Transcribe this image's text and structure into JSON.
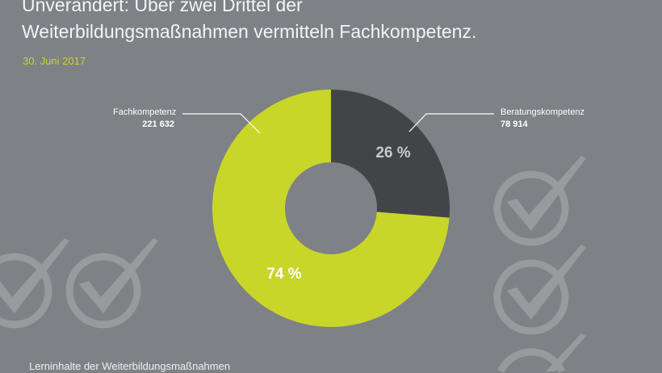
{
  "title_line1": "Unverändert: Über zwei Drittel der",
  "title_line2": "Weiterbildungsmaßnahmen vermitteln Fachkompetenz.",
  "date": "30. Juni 2017",
  "footer": "Lerninhalte der Weiterbildungsmaßnahmen",
  "colors": {
    "background": "#7e8185",
    "fachkompetenz": "#c8d62a",
    "beratungskompetenz": "#434447",
    "checkmark": "#989b9e",
    "date": "#c8d62a"
  },
  "decoration_icon": "checkmark-circle-icon",
  "chart_data": {
    "type": "pie",
    "donut": true,
    "slices": [
      {
        "label": "Beratungskompetenz",
        "value": 78914,
        "value_label": "78 914",
        "percent": 26,
        "percent_label": "26 %",
        "color": "#434447"
      },
      {
        "label": "Fachkompetenz",
        "value": 221632,
        "value_label": "221 632",
        "percent": 74,
        "percent_label": "74 %",
        "color": "#c8d62a"
      }
    ]
  }
}
